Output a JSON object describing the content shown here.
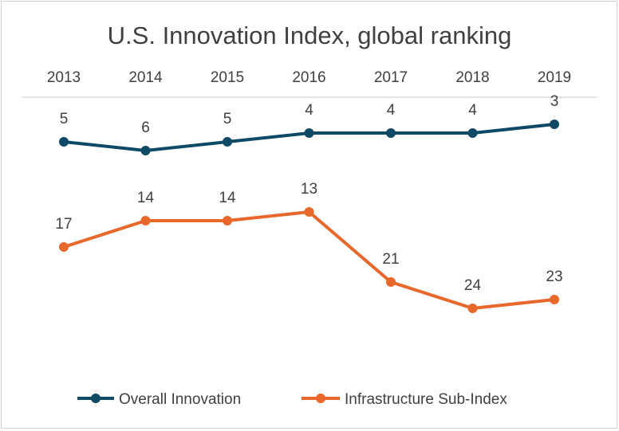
{
  "chart_data": {
    "type": "line",
    "title": "U.S. Innovation Index, global ranking",
    "categories": [
      "2013",
      "2014",
      "2015",
      "2016",
      "2017",
      "2018",
      "2019"
    ],
    "y_inverted": true,
    "ylim": [
      1,
      29
    ],
    "grid": false,
    "legend_position": "bottom",
    "series": [
      {
        "name": "Overall Innovation",
        "color": "#0e4a66",
        "values": [
          5,
          6,
          5,
          4,
          4,
          4,
          3
        ]
      },
      {
        "name": "Infrastructure Sub-Index",
        "color": "#e8672a",
        "values": [
          17,
          14,
          14,
          13,
          21,
          24,
          23
        ]
      }
    ]
  }
}
